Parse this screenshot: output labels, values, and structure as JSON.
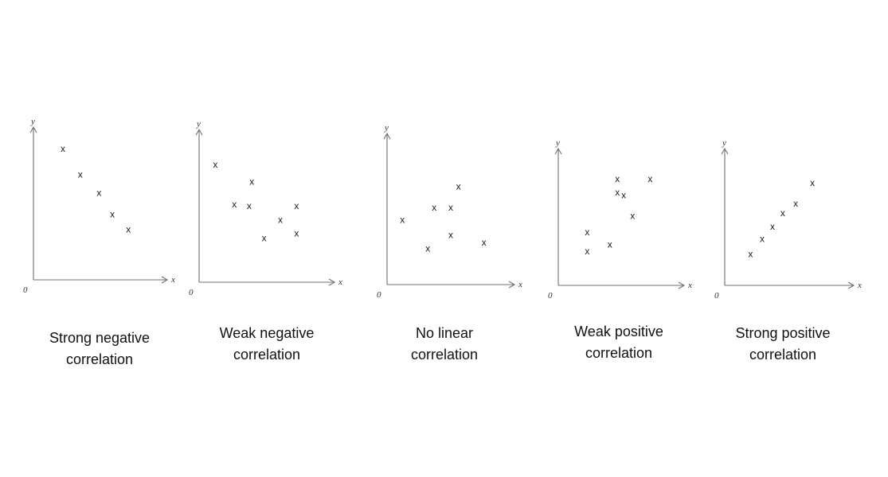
{
  "chart_data": [
    {
      "type": "scatter",
      "title": "Strong negative correlation",
      "title_lines": [
        "Strong negative",
        "correlation"
      ],
      "xlabel": "x",
      "ylabel": "y",
      "origin_label": "0",
      "xlim": [
        0,
        10
      ],
      "ylim": [
        0,
        10
      ],
      "marker": "x",
      "grid": false,
      "points": [
        {
          "x": 2.2,
          "y": 8.6
        },
        {
          "x": 3.5,
          "y": 6.9
        },
        {
          "x": 4.9,
          "y": 5.7
        },
        {
          "x": 5.9,
          "y": 4.3
        },
        {
          "x": 7.1,
          "y": 3.3
        }
      ]
    },
    {
      "type": "scatter",
      "title": "Weak negative correlation",
      "title_lines": [
        "Weak negative",
        "correlation"
      ],
      "xlabel": "x",
      "ylabel": "y",
      "origin_label": "0",
      "xlim": [
        0,
        10
      ],
      "ylim": [
        0,
        10
      ],
      "marker": "x",
      "grid": false,
      "points": [
        {
          "x": 1.2,
          "y": 7.7
        },
        {
          "x": 2.6,
          "y": 5.1
        },
        {
          "x": 3.7,
          "y": 5.0
        },
        {
          "x": 3.9,
          "y": 6.6
        },
        {
          "x": 4.8,
          "y": 2.9
        },
        {
          "x": 6.0,
          "y": 4.1
        },
        {
          "x": 7.2,
          "y": 5.0
        },
        {
          "x": 7.2,
          "y": 3.2
        }
      ]
    },
    {
      "type": "scatter",
      "title": "No linear correlation",
      "title_lines": [
        "No linear",
        "correlation"
      ],
      "xlabel": "x",
      "ylabel": "y",
      "origin_label": "0",
      "xlim": [
        0,
        10
      ],
      "ylim": [
        0,
        10
      ],
      "marker": "x",
      "grid": false,
      "points": [
        {
          "x": 1.2,
          "y": 4.3
        },
        {
          "x": 3.2,
          "y": 2.4
        },
        {
          "x": 3.7,
          "y": 5.1
        },
        {
          "x": 5.0,
          "y": 5.1
        },
        {
          "x": 5.0,
          "y": 3.3
        },
        {
          "x": 5.6,
          "y": 6.5
        },
        {
          "x": 7.6,
          "y": 2.8
        }
      ]
    },
    {
      "type": "scatter",
      "title": "Weak positive correlation",
      "title_lines": [
        "Weak positive",
        "correlation"
      ],
      "xlabel": "x",
      "ylabel": "y",
      "origin_label": "0",
      "xlim": [
        0,
        10
      ],
      "ylim": [
        0,
        10
      ],
      "marker": "x",
      "grid": false,
      "points": [
        {
          "x": 2.3,
          "y": 3.9
        },
        {
          "x": 2.3,
          "y": 2.5
        },
        {
          "x": 4.1,
          "y": 3.0
        },
        {
          "x": 4.7,
          "y": 7.8
        },
        {
          "x": 4.7,
          "y": 6.8
        },
        {
          "x": 5.2,
          "y": 6.6
        },
        {
          "x": 5.9,
          "y": 5.1
        },
        {
          "x": 7.3,
          "y": 7.8
        }
      ]
    },
    {
      "type": "scatter",
      "title": "Strong positive correlation",
      "title_lines": [
        "Strong positive",
        "correlation"
      ],
      "xlabel": "x",
      "ylabel": "y",
      "origin_label": "0",
      "xlim": [
        0,
        10
      ],
      "ylim": [
        0,
        10
      ],
      "marker": "x",
      "grid": false,
      "points": [
        {
          "x": 2.0,
          "y": 2.3
        },
        {
          "x": 2.9,
          "y": 3.4
        },
        {
          "x": 3.7,
          "y": 4.3
        },
        {
          "x": 4.5,
          "y": 5.3
        },
        {
          "x": 5.5,
          "y": 6.0
        },
        {
          "x": 6.8,
          "y": 7.5
        }
      ]
    }
  ]
}
